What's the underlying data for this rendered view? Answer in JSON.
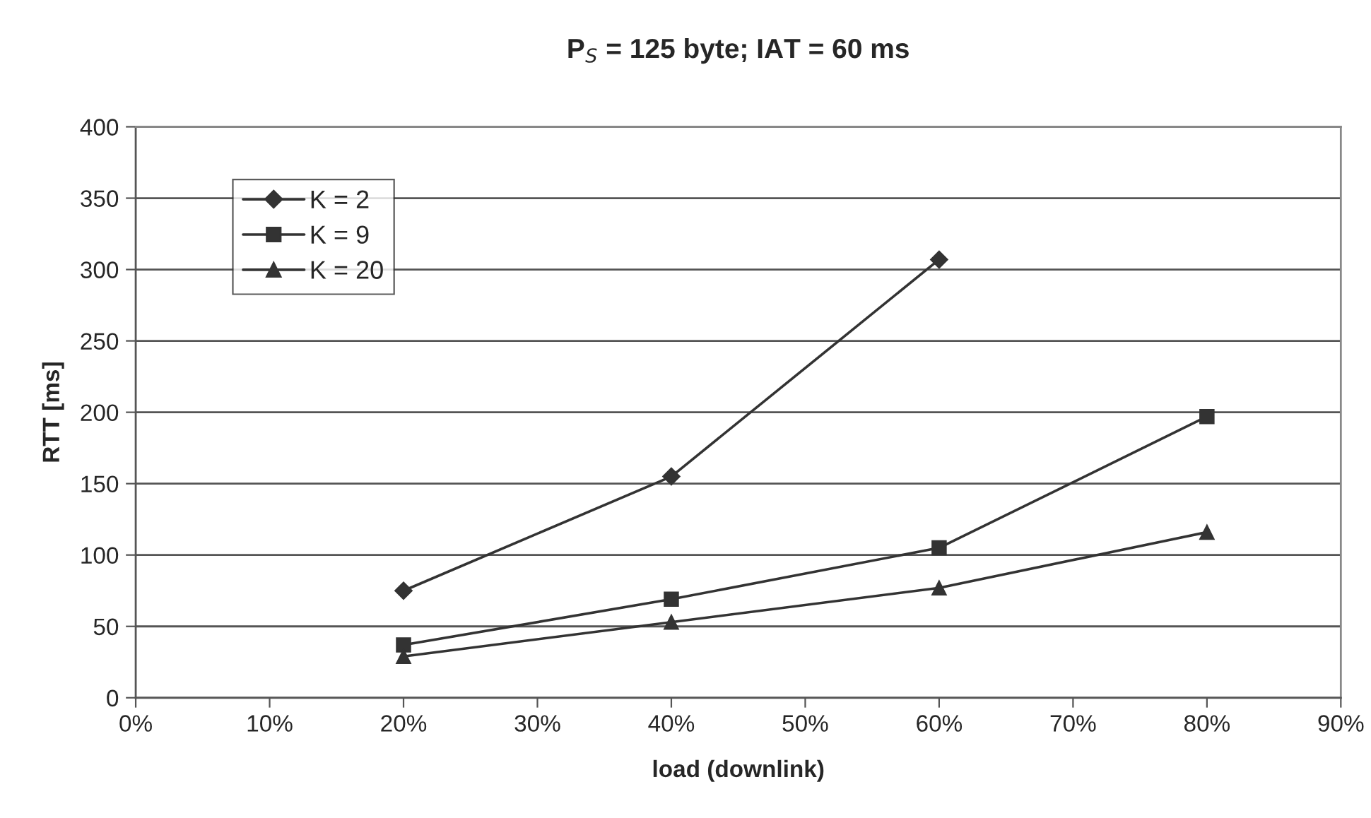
{
  "chart_data": {
    "type": "line",
    "title": "P$_{S}$ = 125 byte; IAT = 60 ms",
    "xlabel": "load (downlink)",
    "ylabel": "RTT [ms]",
    "x": [
      20,
      40,
      60,
      80
    ],
    "series": [
      {
        "name": "K = 2",
        "color": "#333333",
        "marker": "diamond",
        "values": [
          75,
          155,
          307,
          null
        ]
      },
      {
        "name": "K = 9",
        "color": "#333333",
        "marker": "square",
        "values": [
          37,
          69,
          105,
          197
        ]
      },
      {
        "name": "K = 20",
        "color": "#333333",
        "marker": "triangle",
        "values": [
          29,
          53,
          77,
          116
        ]
      }
    ],
    "xlim": [
      0,
      90
    ],
    "xticks": [
      {
        "value": 0,
        "label": "0%"
      },
      {
        "value": 10,
        "label": "10%"
      },
      {
        "value": 20,
        "label": "20%"
      },
      {
        "value": 30,
        "label": "30%"
      },
      {
        "value": 40,
        "label": "40%"
      },
      {
        "value": 50,
        "label": "50%"
      },
      {
        "value": 60,
        "label": "60%"
      },
      {
        "value": 70,
        "label": "70%"
      },
      {
        "value": 80,
        "label": "80%"
      },
      {
        "value": 90,
        "label": "90%"
      }
    ],
    "ylim": [
      0,
      400
    ],
    "yticks": [
      0,
      50,
      100,
      150,
      200,
      250,
      300,
      350,
      400
    ],
    "grid": "y",
    "legend": "top left",
    "line_style": "solid"
  }
}
